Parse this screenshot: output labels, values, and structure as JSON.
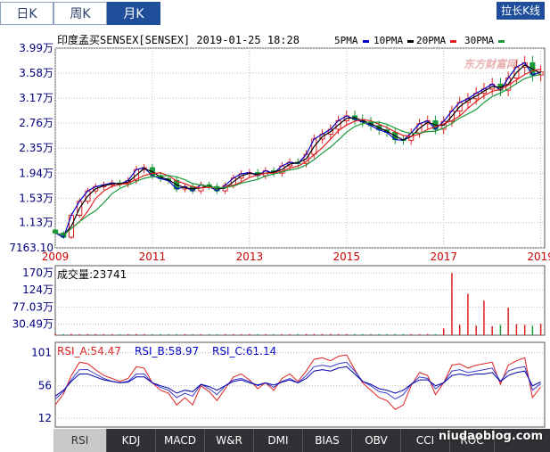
{
  "tabs": {
    "day": "日K",
    "week": "周K",
    "month": "月K"
  },
  "stretch_label": "拉长K线",
  "header": {
    "title": "印度孟买SENSEX[SENSEX] 2019-01-25 18:28",
    "ma": [
      "5PMA",
      "10PMA",
      "20PMA",
      "30PMA"
    ]
  },
  "watermark_top": "东方财富网",
  "vol_title": "成交量:23741",
  "rsi_title": {
    "a": "RSI_A:54.47",
    "b": "RSI_B:58.97",
    "c": "RSI_C:61.14"
  },
  "bottom_tabs": [
    "RSI",
    "KDJ",
    "MACD",
    "W&R",
    "DMI",
    "BIAS",
    "OBV",
    "CCI",
    "ROC"
  ],
  "footer_watermark": "niudaoblog.com",
  "colors": {
    "up": "#e02020",
    "down": "#1a9a3a",
    "ma5": "#0000cc",
    "ma10": "#000000",
    "ma20": "#e02020",
    "ma30": "#1a9a3a",
    "axis_text": "#000080",
    "year_text": "#cc0000"
  },
  "chart_data": [
    {
      "type": "candlestick",
      "title": "印度孟买SENSEX[SENSEX] 2019-01-25 18:28",
      "y_tick_labels": [
        "3.99万",
        "3.58万",
        "3.17万",
        "2.76万",
        "2.35万",
        "1.94万",
        "1.53万",
        "1.13万",
        "7163.10"
      ],
      "y_ticks": [
        39900,
        35800,
        31700,
        27600,
        23500,
        19400,
        15300,
        11300,
        7163.1
      ],
      "ylim": [
        7163.1,
        39900
      ],
      "x_tick_labels": [
        "2009",
        "2011",
        "2013",
        "2015",
        "2017",
        "2019"
      ],
      "x_ticks": [
        2009,
        2011,
        2013,
        2015,
        2017,
        2019
      ],
      "xlim": [
        2009,
        2019.08
      ],
      "series_names": [
        "5PMA",
        "10PMA",
        "20PMA",
        "30PMA"
      ],
      "x": [
        2009.0,
        2009.17,
        2009.33,
        2009.5,
        2009.67,
        2009.83,
        2010.0,
        2010.17,
        2010.33,
        2010.5,
        2010.67,
        2010.83,
        2011.0,
        2011.17,
        2011.33,
        2011.5,
        2011.67,
        2011.83,
        2012.0,
        2012.17,
        2012.33,
        2012.5,
        2012.67,
        2012.83,
        2013.0,
        2013.17,
        2013.33,
        2013.5,
        2013.67,
        2013.83,
        2014.0,
        2014.17,
        2014.33,
        2014.5,
        2014.67,
        2014.83,
        2015.0,
        2015.17,
        2015.33,
        2015.5,
        2015.67,
        2015.83,
        2016.0,
        2016.17,
        2016.33,
        2016.5,
        2016.67,
        2016.83,
        2017.0,
        2017.17,
        2017.33,
        2017.5,
        2017.67,
        2017.83,
        2018.0,
        2018.17,
        2018.33,
        2018.5,
        2018.67,
        2018.83,
        2019.0
      ],
      "close": [
        9600,
        8900,
        12500,
        14800,
        16500,
        17200,
        17500,
        17800,
        17600,
        18200,
        20000,
        20300,
        19000,
        18500,
        18200,
        16800,
        17200,
        16500,
        17500,
        17200,
        16500,
        17400,
        18600,
        19300,
        19500,
        19000,
        19800,
        19400,
        20600,
        21200,
        21000,
        22500,
        25000,
        25800,
        26600,
        28000,
        28800,
        28200,
        27800,
        27200,
        26500,
        26100,
        24900,
        24800,
        26000,
        27500,
        28000,
        26600,
        27900,
        29600,
        31000,
        31600,
        32500,
        33200,
        34000,
        33000,
        35000,
        36800,
        37500,
        35500,
        36000
      ],
      "volume": [
        400,
        300,
        380,
        300,
        320,
        350,
        310,
        300,
        290,
        300,
        320,
        300,
        290,
        300,
        280,
        300,
        290,
        280,
        300,
        290,
        280,
        300,
        290,
        300,
        310,
        300,
        290,
        280,
        300,
        310,
        320,
        330,
        340,
        350,
        360,
        340,
        330,
        320,
        340,
        330,
        320,
        310,
        330,
        340,
        320,
        310,
        330,
        320,
        2000,
        18000,
        3000,
        12000,
        2800,
        10000,
        2600,
        3000,
        8000,
        3200,
        3000,
        2800,
        3300
      ],
      "rsi_a": [
        30,
        45,
        70,
        88,
        86,
        78,
        70,
        66,
        62,
        66,
        82,
        80,
        60,
        50,
        46,
        30,
        40,
        30,
        56,
        48,
        36,
        52,
        68,
        72,
        64,
        52,
        60,
        50,
        66,
        72,
        62,
        76,
        92,
        94,
        90,
        96,
        98,
        78,
        60,
        50,
        40,
        36,
        24,
        30,
        56,
        74,
        70,
        44,
        60,
        84,
        86,
        80,
        84,
        86,
        88,
        58,
        84,
        90,
        94,
        40,
        54.47
      ],
      "rsi_b": [
        38,
        48,
        64,
        78,
        78,
        72,
        66,
        62,
        60,
        62,
        72,
        72,
        60,
        54,
        50,
        40,
        46,
        42,
        58,
        52,
        44,
        56,
        64,
        66,
        62,
        56,
        60,
        54,
        62,
        66,
        60,
        70,
        82,
        84,
        82,
        86,
        88,
        76,
        62,
        56,
        48,
        46,
        38,
        44,
        58,
        68,
        66,
        52,
        60,
        76,
        78,
        74,
        76,
        78,
        80,
        62,
        76,
        80,
        82,
        50,
        58.97
      ],
      "rsi_c": [
        42,
        50,
        62,
        72,
        72,
        68,
        64,
        62,
        60,
        61,
        68,
        68,
        60,
        56,
        53,
        46,
        50,
        48,
        58,
        55,
        50,
        56,
        62,
        64,
        60,
        57,
        60,
        57,
        61,
        64,
        60,
        66,
        76,
        78,
        76,
        80,
        82,
        72,
        62,
        58,
        52,
        50,
        46,
        50,
        58,
        64,
        64,
        56,
        60,
        70,
        72,
        70,
        72,
        72,
        74,
        62,
        70,
        74,
        76,
        56,
        61.14
      ]
    },
    {
      "type": "bar",
      "title": "成交量:23741",
      "y_tick_labels": [
        "170万",
        "124万",
        "77.03万",
        "30.49万"
      ],
      "y_ticks": [
        170,
        124,
        77.03,
        30.49
      ],
      "ylim": [
        0,
        190
      ]
    },
    {
      "type": "line",
      "title": "RSI",
      "y_tick_labels": [
        "101",
        "56",
        "12"
      ],
      "y_ticks": [
        101,
        56,
        12
      ],
      "ylim": [
        0,
        115
      ],
      "legend": [
        "RSI_A:54.47",
        "RSI_B:58.97",
        "RSI_C:61.14"
      ]
    }
  ]
}
